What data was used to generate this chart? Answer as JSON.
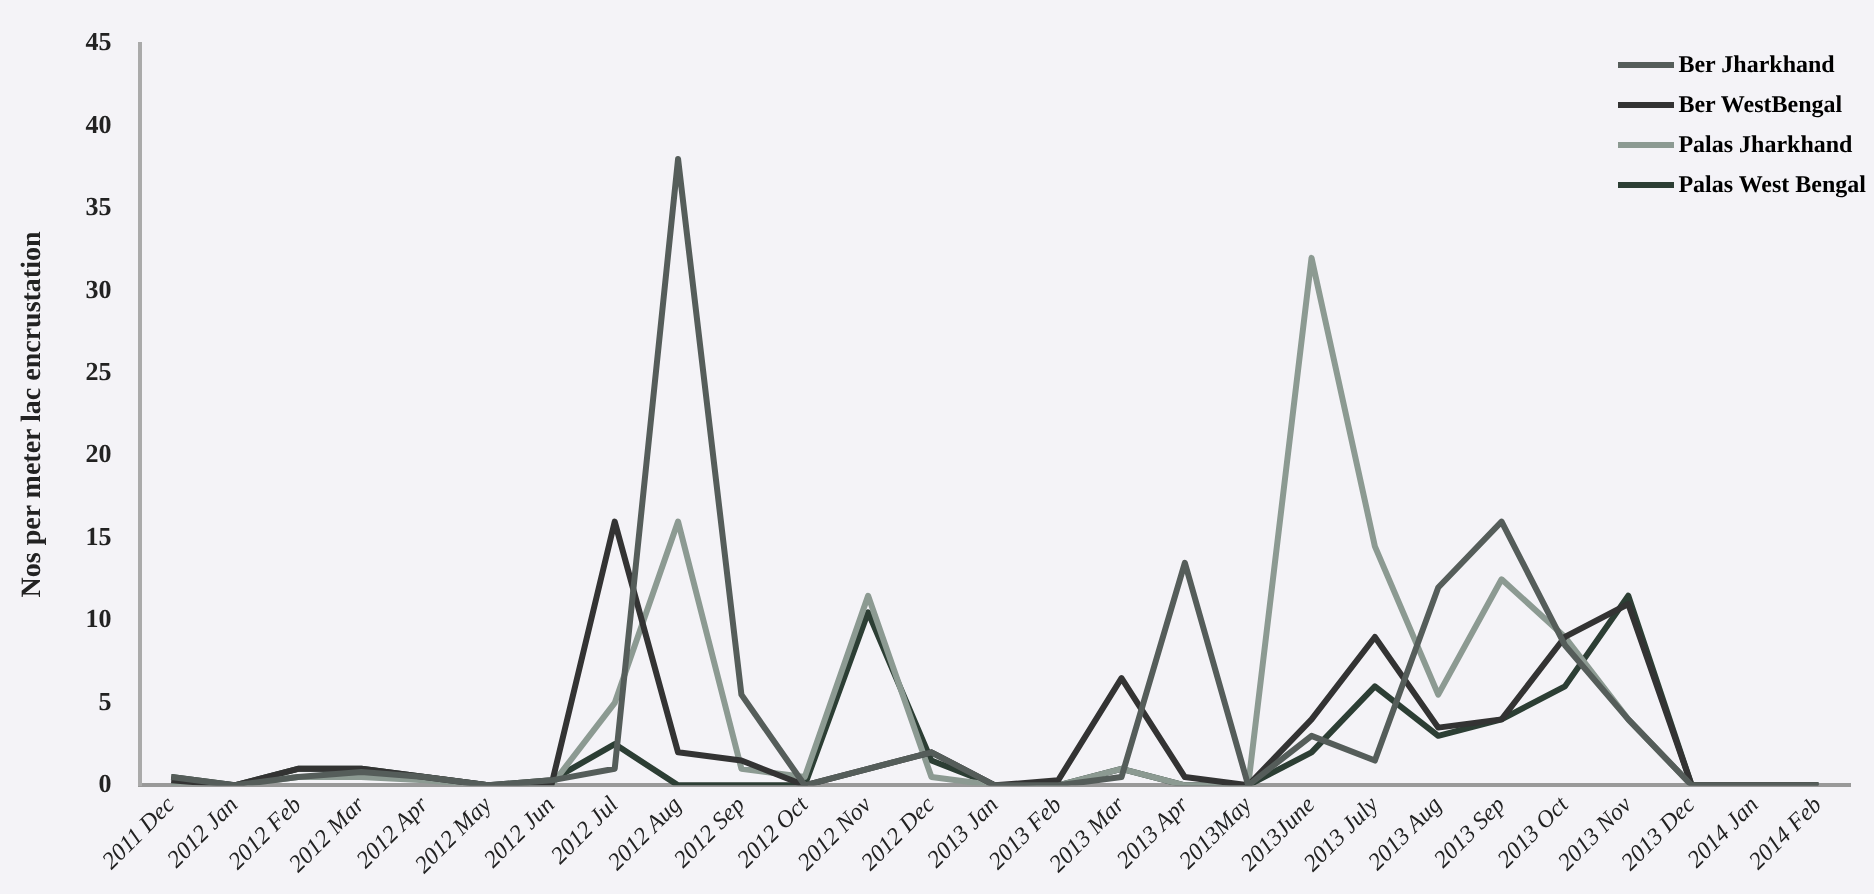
{
  "chart_data": {
    "type": "line",
    "ylabel": "Nos per meter lac encrustation",
    "categories": [
      "2011 Dec",
      "2012 Jan",
      "2012 Feb",
      "2012 Mar",
      "2012 Apr",
      "2012 May",
      "2012 Jun",
      "2012 Jul",
      "2012 Aug",
      "2012 Sep",
      "2012 Oct",
      "2012 Nov",
      "2012 Dec",
      "2013 Jan",
      "2013 Feb",
      "2013 Mar",
      "2013 Apr",
      "2013May",
      "2013June",
      "2013 July",
      "2013 Aug",
      "2013 Sep",
      "2013 Oct",
      "2013 Nov",
      "2013 Dec",
      "2014 Jan",
      "2014 Feb"
    ],
    "series": [
      {
        "name": "Ber Jharkhand",
        "color": "#555d5a",
        "values": [
          0.5,
          0,
          0.5,
          0.8,
          0.5,
          0,
          0.3,
          1,
          38,
          5.5,
          0,
          1,
          2,
          0,
          0,
          0.5,
          13.5,
          0,
          3,
          1.5,
          12,
          16,
          8.5,
          4,
          0,
          0,
          0
        ]
      },
      {
        "name": "Ber WestBengal",
        "color": "#333333",
        "values": [
          0.3,
          0,
          1,
          1,
          0.5,
          0,
          0,
          16,
          2,
          1.5,
          0,
          1,
          2,
          0,
          0.3,
          6.5,
          0.5,
          0,
          4,
          9,
          3.5,
          4,
          9,
          11,
          0,
          0,
          0
        ]
      },
      {
        "name": "Palas Jharkhand",
        "color": "#8c9a92",
        "values": [
          0,
          0,
          0.5,
          0.5,
          0.3,
          0,
          0,
          5,
          16,
          1,
          0.5,
          11.5,
          0.5,
          0,
          0,
          1,
          0,
          0,
          32,
          14.5,
          5.5,
          12.5,
          9,
          4,
          0,
          0,
          0
        ]
      },
      {
        "name": "Palas West Bengal",
        "color": "#2c3e34",
        "values": [
          0.5,
          0,
          1,
          1,
          0.5,
          0,
          0.3,
          2.5,
          0,
          0,
          0,
          10.5,
          1.5,
          0,
          0,
          1,
          0,
          0,
          2,
          6,
          3,
          4,
          6,
          11.5,
          0,
          0,
          0
        ]
      }
    ],
    "ylim": [
      0,
      45
    ],
    "yticks": [
      0,
      5,
      10,
      15,
      20,
      25,
      30,
      35,
      40,
      45
    ],
    "grid": false,
    "legend": "top right",
    "marker": "none",
    "line_style": "solid"
  }
}
